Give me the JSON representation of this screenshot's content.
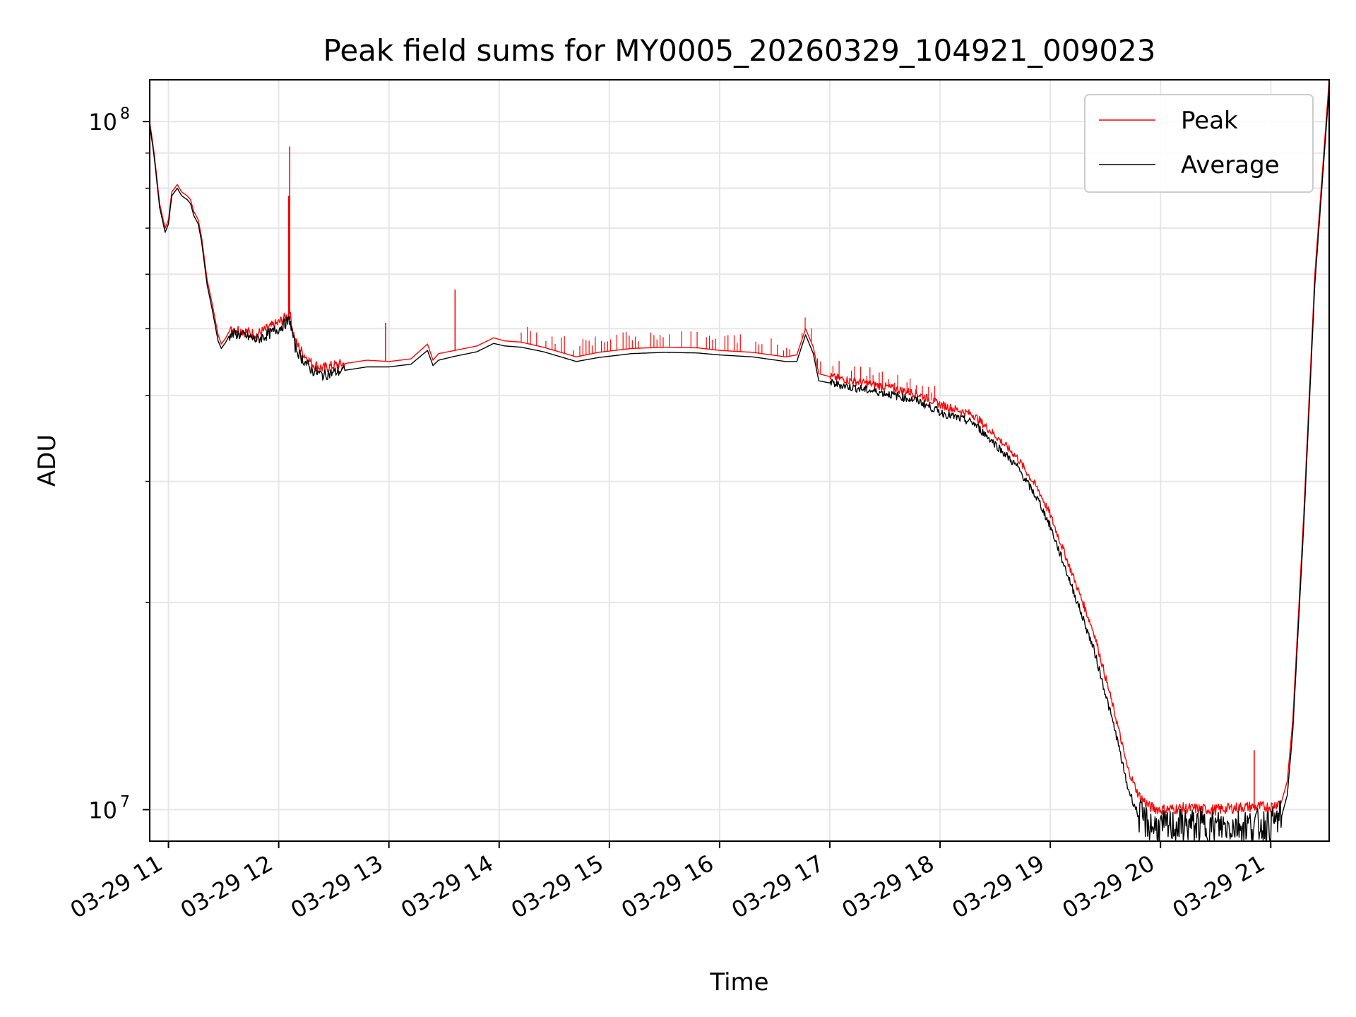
{
  "chart_data": {
    "type": "line",
    "title": "Peak field sums for MY0005_20260329_104921_009023",
    "xlabel": "Time",
    "ylabel": "ADU",
    "yscale": "log",
    "ylim": [
      9000000,
      115000000
    ],
    "xlim_hours": [
      10.83,
      21.53
    ],
    "x_unit": "hour of day (2026-03-29)",
    "grid": true,
    "legend_position": "upper right",
    "x_ticks": [
      {
        "value": 11,
        "label": "03-29 11"
      },
      {
        "value": 12,
        "label": "03-29 12"
      },
      {
        "value": 13,
        "label": "03-29 13"
      },
      {
        "value": 14,
        "label": "03-29 14"
      },
      {
        "value": 15,
        "label": "03-29 15"
      },
      {
        "value": 16,
        "label": "03-29 16"
      },
      {
        "value": 17,
        "label": "03-29 17"
      },
      {
        "value": 18,
        "label": "03-29 18"
      },
      {
        "value": 19,
        "label": "03-29 19"
      },
      {
        "value": 20,
        "label": "03-29 20"
      },
      {
        "value": 21,
        "label": "03-29 21"
      }
    ],
    "y_ticks": [
      {
        "value": 10000000,
        "base": "10",
        "exp": "7"
      },
      {
        "value": 100000000,
        "base": "10",
        "exp": "8"
      }
    ],
    "y_minor_ticks": [
      20000000,
      30000000,
      40000000,
      50000000,
      60000000,
      70000000,
      80000000,
      90000000
    ],
    "series": [
      {
        "name": "Peak",
        "color": "#ff0000",
        "x": [
          10.83,
          10.87,
          10.92,
          10.97,
          11.0,
          11.03,
          11.08,
          11.12,
          11.17,
          11.2,
          11.23,
          11.27,
          11.3,
          11.35,
          11.4,
          11.45,
          11.48,
          11.52,
          11.55,
          11.6,
          11.7,
          11.8,
          11.9,
          12.0,
          12.1,
          12.15,
          12.2,
          12.25,
          12.3,
          12.4,
          12.5,
          12.6,
          12.8,
          13.0,
          13.2,
          13.35,
          13.4,
          13.45,
          13.6,
          13.8,
          13.95,
          14.05,
          14.2,
          14.4,
          14.6,
          14.7,
          14.9,
          15.2,
          15.5,
          15.8,
          16.0,
          16.3,
          16.6,
          16.7,
          16.78,
          16.85,
          16.9,
          17.0,
          17.2,
          17.5,
          17.8,
          18.0,
          18.3,
          18.5,
          18.7,
          18.9,
          19.0,
          19.2,
          19.4,
          19.6,
          19.7,
          19.8,
          19.9,
          20.0,
          20.2,
          20.5,
          20.8,
          21.0,
          21.1,
          21.15,
          21.2,
          21.3,
          21.4,
          21.53
        ],
        "y": [
          100000000,
          90000000,
          76000000,
          70000000,
          72000000,
          79000000,
          81000000,
          79000000,
          78000000,
          77000000,
          74000000,
          72000000,
          68000000,
          59000000,
          54000000,
          49000000,
          47500000,
          48500000,
          49500000,
          50000000,
          49500000,
          49000000,
          50000000,
          51000000,
          52500000,
          48000000,
          46500000,
          45500000,
          44500000,
          43800000,
          44200000,
          44500000,
          45000000,
          44800000,
          45200000,
          47500000,
          45000000,
          46000000,
          46500000,
          47200000,
          48500000,
          48000000,
          47800000,
          47000000,
          46000000,
          45500000,
          46200000,
          46800000,
          47000000,
          46900000,
          46500000,
          46200000,
          45500000,
          45800000,
          50000000,
          47000000,
          43000000,
          42600000,
          42000000,
          41200000,
          40200000,
          38800000,
          37500000,
          35000000,
          32500000,
          29000000,
          26800000,
          22000000,
          18000000,
          13500000,
          11500000,
          10500000,
          10100000,
          10000000,
          10050000,
          10000000,
          10100000,
          10100000,
          10300000,
          11000000,
          13500000,
          27000000,
          60000000,
          115000000
        ]
      },
      {
        "name": "Average",
        "color": "#000000",
        "x": [
          10.83,
          10.87,
          10.92,
          10.97,
          11.0,
          11.03,
          11.08,
          11.12,
          11.17,
          11.2,
          11.23,
          11.27,
          11.3,
          11.35,
          11.4,
          11.45,
          11.48,
          11.52,
          11.55,
          11.6,
          11.7,
          11.8,
          11.9,
          12.0,
          12.1,
          12.15,
          12.2,
          12.25,
          12.3,
          12.4,
          12.5,
          12.6,
          12.8,
          13.0,
          13.2,
          13.35,
          13.4,
          13.45,
          13.6,
          13.8,
          13.95,
          14.05,
          14.2,
          14.4,
          14.6,
          14.7,
          14.9,
          15.2,
          15.5,
          15.8,
          16.0,
          16.3,
          16.6,
          16.7,
          16.78,
          16.85,
          16.9,
          17.0,
          17.2,
          17.5,
          17.8,
          18.0,
          18.3,
          18.5,
          18.7,
          18.9,
          19.0,
          19.2,
          19.4,
          19.6,
          19.7,
          19.8,
          19.9,
          20.0,
          20.2,
          20.5,
          20.8,
          21.0,
          21.1,
          21.15,
          21.2,
          21.3,
          21.4,
          21.53
        ],
        "y": [
          99000000,
          89000000,
          75000000,
          69000000,
          71000000,
          78000000,
          80000000,
          78000000,
          77000000,
          76000000,
          73000000,
          71000000,
          67000000,
          58000000,
          53000000,
          48000000,
          46800000,
          47800000,
          48800000,
          49200000,
          48800000,
          48200000,
          49000000,
          50000000,
          51500000,
          47000000,
          45500000,
          44500000,
          43500000,
          42800000,
          43200000,
          43500000,
          44000000,
          44000000,
          44400000,
          46500000,
          44200000,
          45000000,
          45600000,
          46300000,
          47600000,
          47200000,
          47000000,
          46300000,
          45300000,
          44800000,
          45400000,
          46000000,
          46200000,
          46100000,
          45800000,
          45500000,
          44800000,
          44800000,
          49000000,
          46000000,
          42000000,
          41700000,
          41100000,
          40300000,
          39300000,
          37800000,
          36500000,
          34000000,
          31500000,
          28000000,
          25800000,
          21000000,
          17000000,
          12800000,
          10800000,
          9800000,
          9500000,
          9400000,
          9500000,
          9450000,
          9500000,
          9500000,
          9800000,
          10500000,
          13000000,
          26000000,
          58000000,
          112000000
        ]
      }
    ],
    "peak_spikes": [
      {
        "x": 12.1,
        "y": 92000000
      },
      {
        "x": 12.09,
        "y": 78000000
      },
      {
        "x": 12.97,
        "y": 51000000
      },
      {
        "x": 13.6,
        "y": 57000000
      },
      {
        "x": 20.85,
        "y": 12200000
      }
    ]
  },
  "legend": {
    "peak_label": "Peak",
    "average_label": "Average"
  }
}
